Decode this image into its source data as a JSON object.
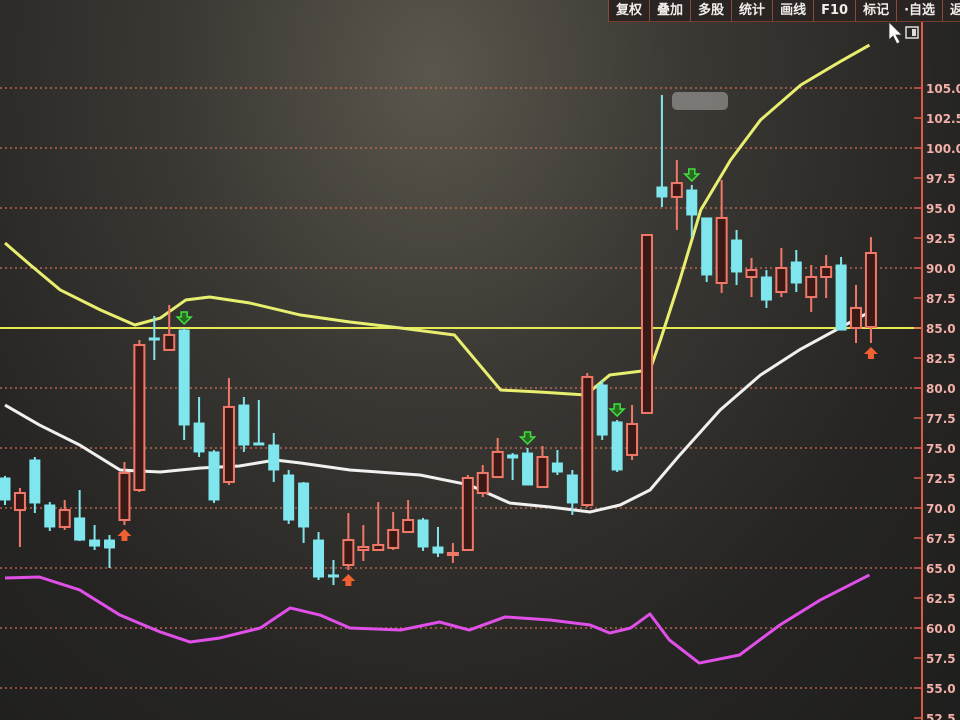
{
  "toolbar": {
    "buttons": [
      "复权",
      "叠加",
      "多股",
      "统计",
      "画线",
      "F10",
      "标记",
      "·自选",
      "返"
    ]
  },
  "chart_data": {
    "type": "candlestick",
    "ylim": [
      52.5,
      110
    ],
    "y_ticks": [
      "105.0",
      "102.5",
      "100.0",
      "97.5",
      "95.0",
      "92.5",
      "90.0",
      "87.5",
      "85.0",
      "82.5",
      "80.0",
      "77.5",
      "75.0",
      "72.5",
      "70.0",
      "67.5",
      "65.0",
      "62.5",
      "60.0",
      "57.5",
      "55.0",
      "52.5"
    ],
    "grid": true,
    "colors": {
      "up": "#f07868",
      "down": "#7fe6ee",
      "ma_yellow": "#e8ee70",
      "ma_white": "#f0f0f0",
      "indicator": "#e050e8",
      "hline": "#e8e850",
      "buy_arrow": "#f06030",
      "sell_arrow": "#40e040",
      "axis": "#e05a48"
    },
    "horizontal_line": 85.0,
    "candles": [
      [
        72.5,
        72.67,
        70.25,
        70.67
      ],
      [
        69.83,
        71.67,
        66.75,
        71.25
      ],
      [
        74.0,
        74.25,
        69.58,
        70.42
      ],
      [
        70.25,
        70.5,
        68.08,
        68.42
      ],
      [
        68.42,
        70.67,
        68.17,
        69.83
      ],
      [
        69.17,
        71.5,
        67.25,
        67.33
      ],
      [
        67.33,
        68.58,
        66.5,
        66.83
      ],
      [
        67.33,
        67.75,
        65.0,
        66.67
      ],
      [
        69.0,
        73.83,
        68.58,
        72.92
      ],
      [
        71.5,
        84.0,
        71.33,
        83.58
      ],
      [
        84.17,
        86.0,
        82.33,
        84.0
      ],
      [
        83.17,
        86.92,
        83.17,
        84.42
      ],
      [
        84.83,
        85.0,
        75.67,
        76.92
      ],
      [
        77.08,
        79.25,
        74.25,
        74.67
      ],
      [
        74.67,
        74.83,
        70.42,
        70.67
      ],
      [
        72.17,
        80.83,
        71.92,
        78.42
      ],
      [
        78.58,
        79.25,
        74.67,
        75.25
      ],
      [
        75.42,
        79.0,
        75.25,
        75.33
      ],
      [
        75.25,
        76.25,
        72.17,
        73.17
      ],
      [
        72.75,
        73.17,
        68.67,
        69.0
      ],
      [
        72.08,
        72.17,
        67.08,
        68.42
      ],
      [
        67.33,
        68.0,
        64.0,
        64.25
      ],
      [
        64.42,
        65.67,
        63.58,
        64.33
      ],
      [
        65.25,
        69.58,
        64.83,
        67.33
      ],
      [
        66.5,
        68.58,
        65.58,
        66.75
      ],
      [
        66.5,
        70.5,
        66.5,
        66.92
      ],
      [
        66.67,
        69.67,
        66.5,
        68.17
      ],
      [
        68.0,
        70.67,
        68.0,
        69.0
      ],
      [
        69.0,
        69.17,
        66.42,
        66.75
      ],
      [
        66.75,
        68.42,
        65.92,
        66.25
      ],
      [
        66.17,
        67.08,
        65.42,
        66.25
      ],
      [
        66.5,
        72.75,
        66.5,
        72.5
      ],
      [
        71.25,
        73.58,
        70.92,
        72.92
      ],
      [
        72.58,
        75.83,
        72.5,
        74.67
      ],
      [
        74.42,
        74.58,
        72.33,
        74.17
      ],
      [
        74.58,
        75.0,
        71.92,
        71.92
      ],
      [
        71.75,
        75.17,
        71.75,
        74.25
      ],
      [
        73.75,
        74.83,
        72.75,
        73.0
      ],
      [
        72.75,
        73.17,
        69.42,
        70.42
      ],
      [
        70.25,
        81.25,
        70.08,
        80.92
      ],
      [
        80.25,
        80.67,
        75.67,
        76.08
      ],
      [
        77.17,
        77.33,
        73.0,
        73.17
      ],
      [
        74.42,
        78.58,
        74.0,
        77.0
      ],
      [
        77.92,
        92.75,
        77.92,
        92.75
      ],
      [
        96.75,
        104.42,
        95.08,
        95.92
      ],
      [
        95.92,
        99.0,
        93.17,
        97.08
      ],
      [
        96.5,
        96.92,
        92.58,
        94.42
      ],
      [
        94.17,
        94.17,
        88.83,
        89.42
      ],
      [
        88.75,
        97.33,
        87.92,
        94.17
      ],
      [
        92.33,
        93.17,
        88.58,
        89.67
      ],
      [
        89.25,
        90.83,
        87.58,
        89.83
      ],
      [
        89.25,
        89.83,
        86.67,
        87.33
      ],
      [
        88.0,
        91.67,
        87.58,
        90.0
      ],
      [
        90.5,
        91.5,
        88.0,
        88.75
      ],
      [
        87.58,
        90.25,
        86.33,
        89.25
      ],
      [
        89.25,
        91.08,
        87.5,
        90.08
      ],
      [
        90.25,
        90.92,
        84.83,
        84.83
      ],
      [
        85.0,
        88.58,
        83.75,
        86.67
      ],
      [
        85.08,
        92.58,
        83.75,
        91.25
      ]
    ],
    "candle_fields": [
      "open",
      "high",
      "low",
      "close"
    ],
    "sell_signals": [
      12,
      35,
      41,
      46
    ],
    "buy_signals": [
      8,
      23,
      58
    ],
    "lines": [
      {
        "color": "ma_yellow",
        "points": [
          [
            0,
            92.08
          ],
          [
            1.7,
            90.25
          ],
          [
            3.7,
            88.17
          ],
          [
            6.4,
            86.5
          ],
          [
            8.7,
            85.25
          ],
          [
            10.4,
            85.83
          ],
          [
            12.1,
            87.33
          ],
          [
            13.7,
            87.58
          ],
          [
            16.4,
            87.08
          ],
          [
            19.8,
            86.08
          ],
          [
            23.1,
            85.5
          ],
          [
            26.5,
            85.0
          ],
          [
            30.1,
            84.42
          ],
          [
            33.2,
            79.83
          ],
          [
            35.8,
            79.67
          ],
          [
            38.9,
            79.42
          ],
          [
            40.5,
            81.08
          ],
          [
            43.2,
            81.5
          ],
          [
            43.9,
            84.0
          ],
          [
            45.2,
            89.0
          ],
          [
            46.6,
            94.83
          ],
          [
            48.6,
            99.0
          ],
          [
            50.6,
            102.33
          ],
          [
            53.3,
            105.25
          ],
          [
            55.9,
            107.17
          ],
          [
            57.9,
            108.58
          ]
        ]
      },
      {
        "color": "ma_white",
        "points": [
          [
            0,
            78.58
          ],
          [
            2.3,
            76.92
          ],
          [
            5.0,
            75.25
          ],
          [
            7.7,
            73.17
          ],
          [
            10.4,
            73.0
          ],
          [
            13.1,
            73.33
          ],
          [
            15.7,
            73.5
          ],
          [
            18.1,
            74.0
          ],
          [
            19.8,
            73.75
          ],
          [
            23.1,
            73.17
          ],
          [
            27.8,
            72.75
          ],
          [
            31.1,
            71.92
          ],
          [
            33.8,
            70.42
          ],
          [
            36.5,
            70.08
          ],
          [
            39.2,
            69.67
          ],
          [
            41.2,
            70.25
          ],
          [
            43.2,
            71.5
          ],
          [
            45.2,
            74.42
          ],
          [
            47.9,
            78.17
          ],
          [
            50.6,
            81.08
          ],
          [
            53.2,
            83.17
          ],
          [
            55.9,
            85.0
          ],
          [
            57.9,
            86.33
          ]
        ]
      },
      {
        "color": "indicator",
        "points": [
          [
            0,
            64.17
          ],
          [
            2.3,
            64.25
          ],
          [
            5.0,
            63.17
          ],
          [
            7.7,
            61.08
          ],
          [
            10.4,
            59.67
          ],
          [
            12.4,
            58.83
          ],
          [
            14.4,
            59.17
          ],
          [
            17.1,
            60.0
          ],
          [
            19.1,
            61.67
          ],
          [
            21.1,
            61.08
          ],
          [
            23.1,
            60.0
          ],
          [
            26.5,
            59.83
          ],
          [
            29.1,
            60.5
          ],
          [
            31.1,
            59.83
          ],
          [
            33.5,
            60.92
          ],
          [
            36.5,
            60.67
          ],
          [
            39.2,
            60.25
          ],
          [
            40.5,
            59.58
          ],
          [
            41.9,
            60.0
          ],
          [
            43.2,
            61.17
          ],
          [
            44.5,
            59.0
          ],
          [
            46.5,
            57.08
          ],
          [
            49.2,
            57.75
          ],
          [
            51.9,
            60.25
          ],
          [
            54.6,
            62.33
          ],
          [
            57.9,
            64.42
          ]
        ]
      }
    ]
  }
}
